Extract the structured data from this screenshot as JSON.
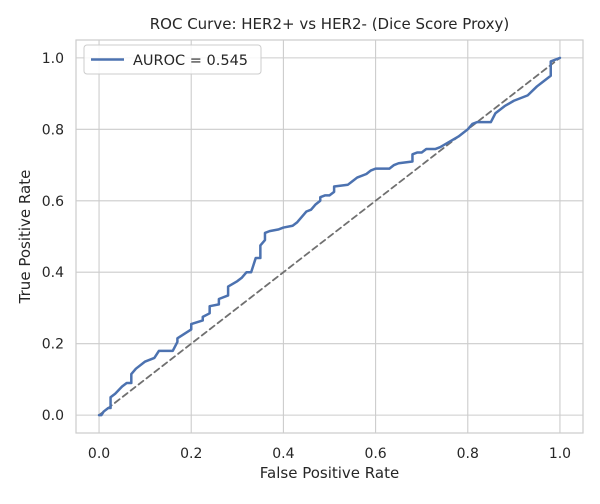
{
  "chart_data": {
    "type": "line",
    "title": "ROC Curve: HER2+ vs HER2- (Dice Score Proxy)",
    "xlabel": "False Positive Rate",
    "ylabel": "True Positive Rate",
    "xlim": [
      -0.05,
      1.05
    ],
    "ylim": [
      -0.05,
      1.05
    ],
    "xticks": [
      0.0,
      0.2,
      0.4,
      0.6,
      0.8,
      1.0
    ],
    "yticks": [
      0.0,
      0.2,
      0.4,
      0.6,
      0.8,
      1.0
    ],
    "xtick_labels": [
      "0.0",
      "0.2",
      "0.4",
      "0.6",
      "0.8",
      "1.0"
    ],
    "ytick_labels": [
      "0.0",
      "0.2",
      "0.4",
      "0.6",
      "0.8",
      "1.0"
    ],
    "grid": true,
    "legend_position": "upper-left",
    "series": [
      {
        "name": "AUROC = 0.545",
        "color": "#4c72b0",
        "style": "solid",
        "x": [
          0.0,
          0.005,
          0.01,
          0.02,
          0.025,
          0.025,
          0.035,
          0.05,
          0.06,
          0.07,
          0.07,
          0.08,
          0.1,
          0.12,
          0.13,
          0.16,
          0.17,
          0.17,
          0.2,
          0.2,
          0.225,
          0.225,
          0.24,
          0.24,
          0.26,
          0.26,
          0.28,
          0.28,
          0.3,
          0.31,
          0.32,
          0.33,
          0.335,
          0.34,
          0.35,
          0.35,
          0.36,
          0.36,
          0.37,
          0.39,
          0.4,
          0.42,
          0.43,
          0.44,
          0.45,
          0.46,
          0.47,
          0.48,
          0.48,
          0.49,
          0.5,
          0.51,
          0.51,
          0.54,
          0.55,
          0.56,
          0.58,
          0.59,
          0.6,
          0.63,
          0.64,
          0.65,
          0.68,
          0.68,
          0.69,
          0.7,
          0.71,
          0.73,
          0.74,
          0.76,
          0.78,
          0.79,
          0.8,
          0.81,
          0.82,
          0.84,
          0.85,
          0.86,
          0.88,
          0.9,
          0.93,
          0.95,
          0.96,
          0.98,
          0.98,
          1.0
        ],
        "y": [
          0.0,
          0.0,
          0.01,
          0.02,
          0.02,
          0.05,
          0.06,
          0.08,
          0.09,
          0.09,
          0.115,
          0.13,
          0.15,
          0.16,
          0.18,
          0.18,
          0.205,
          0.215,
          0.24,
          0.255,
          0.265,
          0.275,
          0.285,
          0.305,
          0.31,
          0.325,
          0.335,
          0.36,
          0.375,
          0.385,
          0.4,
          0.4,
          0.42,
          0.44,
          0.44,
          0.475,
          0.49,
          0.51,
          0.515,
          0.52,
          0.525,
          0.53,
          0.54,
          0.555,
          0.57,
          0.575,
          0.59,
          0.6,
          0.61,
          0.615,
          0.615,
          0.625,
          0.64,
          0.645,
          0.655,
          0.665,
          0.675,
          0.685,
          0.69,
          0.69,
          0.7,
          0.705,
          0.71,
          0.73,
          0.735,
          0.735,
          0.745,
          0.745,
          0.75,
          0.765,
          0.78,
          0.79,
          0.8,
          0.815,
          0.82,
          0.82,
          0.82,
          0.845,
          0.865,
          0.88,
          0.895,
          0.92,
          0.93,
          0.95,
          0.99,
          1.0
        ]
      },
      {
        "name": "",
        "color": "#707070",
        "style": "dashed",
        "x": [
          0.0,
          1.0
        ],
        "y": [
          0.0,
          1.0
        ]
      }
    ]
  }
}
